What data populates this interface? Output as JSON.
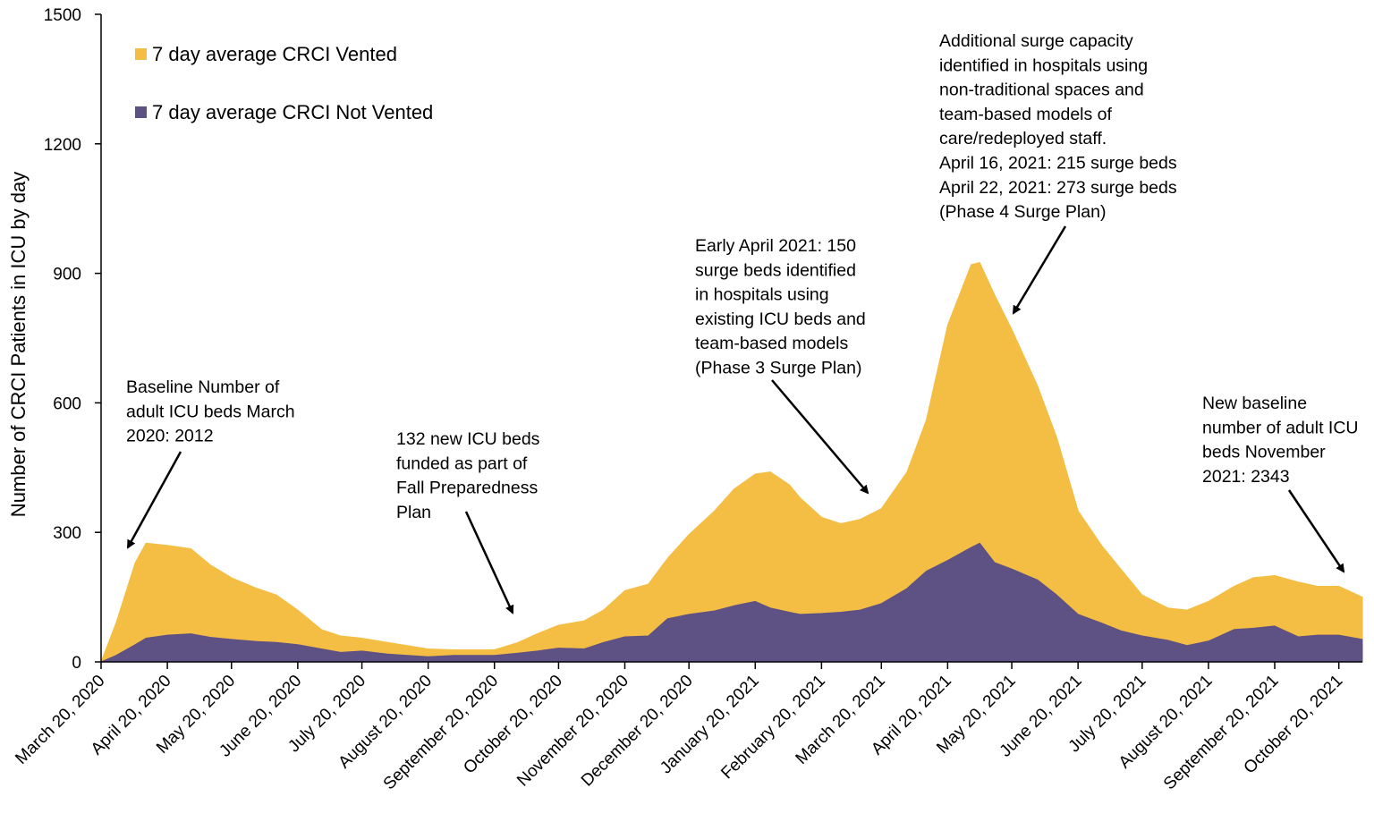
{
  "chart_data": {
    "type": "area",
    "stacked": true,
    "title": "",
    "xlabel": "",
    "ylabel": "Number of CRCI Patients in ICU by day",
    "ylim": [
      0,
      1500
    ],
    "yticks": [
      "0",
      "300",
      "600",
      "900",
      "1200",
      "1500"
    ],
    "xticks": [
      "March 20, 2020",
      "April 20, 2020",
      "May 20, 2020",
      "June 20, 2020",
      "July 20, 2020",
      "August 20, 2020",
      "September 20, 2020",
      "October 20, 2020",
      "November 20, 2020",
      "December 20, 2020",
      "January 20, 2021",
      "February 20, 2021",
      "March 20, 2021",
      "April 20, 2021",
      "May 20, 2021",
      "June 20, 2021",
      "July 20, 2021",
      "August 20, 2021",
      "September 20, 2021",
      "October 20, 2021"
    ],
    "xlim": [
      "2020-03-20",
      "2021-10-31"
    ],
    "grid": false,
    "legend_position": "top-left",
    "colors": {
      "vented": "#F4BE45",
      "not_vented": "#5E5183"
    },
    "x": [
      "2020-03-20",
      "2020-03-27",
      "2020-04-05",
      "2020-04-10",
      "2020-04-20",
      "2020-05-01",
      "2020-05-10",
      "2020-05-20",
      "2020-06-01",
      "2020-06-10",
      "2020-06-20",
      "2020-07-01",
      "2020-07-10",
      "2020-07-20",
      "2020-08-01",
      "2020-08-20",
      "2020-09-01",
      "2020-09-20",
      "2020-10-01",
      "2020-10-10",
      "2020-10-20",
      "2020-11-01",
      "2020-11-10",
      "2020-11-20",
      "2020-12-01",
      "2020-12-10",
      "2020-12-20",
      "2021-01-01",
      "2021-01-10",
      "2021-01-20",
      "2021-01-27",
      "2021-02-05",
      "2021-02-10",
      "2021-02-20",
      "2021-03-01",
      "2021-03-10",
      "2021-03-20",
      "2021-04-01",
      "2021-04-10",
      "2021-04-20",
      "2021-05-01",
      "2021-05-05",
      "2021-05-12",
      "2021-05-20",
      "2021-06-01",
      "2021-06-10",
      "2021-06-20",
      "2021-07-01",
      "2021-07-10",
      "2021-07-20",
      "2021-08-01",
      "2021-08-10",
      "2021-08-20",
      "2021-09-01",
      "2021-09-10",
      "2021-09-20",
      "2021-10-01",
      "2021-10-10",
      "2021-10-20",
      "2021-10-31"
    ],
    "series": [
      {
        "name": "7 day average CRCI Not Vented",
        "values": [
          0,
          15,
          40,
          55,
          62,
          65,
          57,
          52,
          47,
          45,
          40,
          30,
          22,
          25,
          18,
          12,
          15,
          15,
          20,
          25,
          32,
          30,
          45,
          58,
          60,
          100,
          110,
          118,
          130,
          140,
          125,
          115,
          110,
          112,
          115,
          120,
          135,
          170,
          210,
          235,
          265,
          275,
          230,
          215,
          190,
          155,
          110,
          90,
          72,
          60,
          50,
          38,
          48,
          75,
          78,
          83,
          58,
          62,
          62,
          52
        ]
      },
      {
        "name": "7 day average CRCI Vented",
        "values": [
          0,
          75,
          190,
          220,
          208,
          197,
          168,
          143,
          123,
          110,
          80,
          45,
          38,
          30,
          27,
          18,
          13,
          13,
          25,
          40,
          53,
          65,
          75,
          107,
          120,
          140,
          185,
          232,
          270,
          295,
          315,
          295,
          270,
          223,
          205,
          210,
          220,
          270,
          350,
          545,
          655,
          650,
          620,
          555,
          450,
          365,
          240,
          180,
          143,
          95,
          75,
          82,
          92,
          100,
          117,
          117,
          127,
          113,
          113,
          98
        ]
      }
    ],
    "annotations": [
      {
        "lines": [
          "Baseline Number of",
          "adult ICU beds March",
          "2020: 2012"
        ]
      },
      {
        "lines": [
          "132 new ICU beds",
          "funded as part of",
          "Fall Preparedness",
          "Plan"
        ]
      },
      {
        "lines": [
          "Early April 2021: 150",
          "surge beds identified",
          "in hospitals using",
          "existing ICU beds and",
          "team-based models",
          "(Phase 3 Surge Plan)"
        ]
      },
      {
        "lines": [
          "Additional surge capacity",
          "identified in hospitals using",
          "non-traditional spaces and",
          "team-based models of",
          "care/redeployed staff.",
          "April 16, 2021: 215 surge beds",
          "April 22, 2021: 273 surge beds",
          "(Phase 4 Surge Plan)"
        ]
      },
      {
        "lines": [
          "New baseline",
          "number of adult ICU",
          "beds November",
          "2021: 2343"
        ]
      }
    ]
  }
}
